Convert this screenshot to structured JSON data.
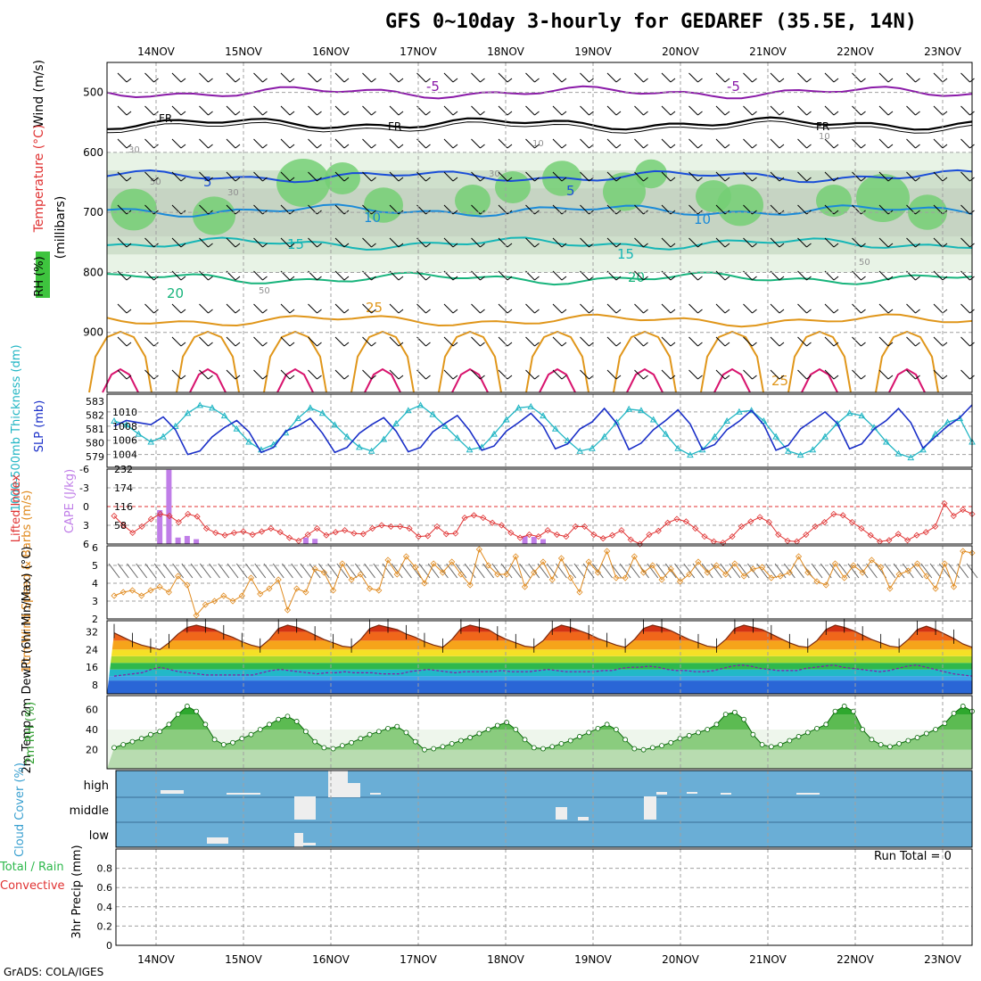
{
  "title": "GFS 0~10day 3-hourly for GEDAREF (35.5E, 14N)",
  "credit": "GrADS: COLA/IGES",
  "run_total": "Run Total = 0",
  "colors": {
    "rh_green": "#3ec43e",
    "temp_purple": "#8a1aa8",
    "slp_blue": "#1a2fc8",
    "thickness_cyan": "#22b6c4",
    "lifted_red": "#e03232",
    "cape_violet": "#c07ee8",
    "wind_orange": "#e08a1e",
    "cloud_blue": "#6aaed6",
    "rh2m_green": "#2e9e2e"
  },
  "chart_data": [
    {
      "id": "upper_air",
      "type": "heatmap",
      "y_axis_label": "(millibars)",
      "left_labels": [
        "Wind (m/s)",
        "Temperature (°C)",
        "RH (%)"
      ],
      "x_tick_labels": [
        "14NOV",
        "15NOV",
        "16NOV",
        "17NOV",
        "18NOV",
        "19NOV",
        "20NOV",
        "21NOV",
        "22NOV",
        "23NOV"
      ],
      "y_ticks": [
        500,
        600,
        700,
        800,
        900
      ],
      "ylim": [
        1000,
        450
      ],
      "temperature_contours": [
        {
          "label": "-5",
          "pressure": 500,
          "color": "#8a1aa8"
        },
        {
          "label": "FR",
          "pressure": 552,
          "color": "#000000"
        },
        {
          "label": "5",
          "pressure": 640,
          "color": "#1a4ed8"
        },
        {
          "label": "10",
          "pressure": 697,
          "color": "#1a8ad8"
        },
        {
          "label": "15",
          "pressure": 752,
          "color": "#16b6b6"
        },
        {
          "label": "20",
          "pressure": 810,
          "color": "#18b47c"
        },
        {
          "label": "25",
          "pressure": 880,
          "color": "#e0961a"
        }
      ],
      "contour_labels": [
        "-5",
        "-5",
        "FR",
        "FR",
        "FR",
        "5",
        "5",
        "10",
        "10",
        "15",
        "15",
        "20",
        "20",
        "25",
        "25",
        "30",
        "30",
        "30",
        "10",
        "10",
        "50",
        "50",
        "50"
      ]
    },
    {
      "id": "slp_thickness",
      "type": "line",
      "left_label": "1000-500mb Thickness (dm)",
      "right_label": "SLP (mb)",
      "left_ticks": [
        "583",
        "582",
        "581",
        "580",
        "579"
      ],
      "right_ticks": [
        "1010",
        "1008",
        "1006",
        "1004"
      ],
      "series": [
        {
          "name": "SLP (mb)",
          "color": "#1a2fc8",
          "values": [
            1008,
            1008.8,
            1008.5,
            1008.2,
            1009.3,
            1007.5,
            1004,
            1004.5,
            1006.5,
            1007.8,
            1008.8,
            1007.2,
            1004.3,
            1005,
            1007.3,
            1008,
            1009.1,
            1007,
            1004.3,
            1005,
            1007,
            1008.2,
            1009.2,
            1007.3,
            1004.4,
            1005,
            1007.2,
            1008.4,
            1009.5,
            1007.4,
            1004.6,
            1005.2,
            1007.3,
            1008.5,
            1009.8,
            1008,
            1004.8,
            1005.5,
            1007.6,
            1008.6,
            1010.5,
            1008.4,
            1004.7,
            1005.6,
            1007.5,
            1008.8,
            1010.3,
            1008.3,
            1004.7,
            1005.4,
            1007.5,
            1008.7,
            1010.2,
            1008.2,
            1004.6,
            1005.3,
            1007.6,
            1008.8,
            1010,
            1008.4,
            1004.8,
            1005.5,
            1007.6,
            1008.8,
            1010.5,
            1008.5,
            1004.9,
            1006.5,
            1008,
            1009.2,
            1011
          ]
        },
        {
          "name": "Thickness (dm)",
          "color": "#22b6c4",
          "values": [
            581.8,
            581.5,
            580.8,
            580.2,
            580.6,
            581.4,
            582.4,
            583,
            582.8,
            582.2,
            581.2,
            580.2,
            579.6,
            580,
            580.9,
            582,
            582.8,
            582.4,
            581.5,
            580.6,
            579.8,
            579.5,
            580.4,
            581.6,
            582.6,
            583,
            582.3,
            581.4,
            580.5,
            579.6,
            579.8,
            580.8,
            581.9,
            582.8,
            582.9,
            582.2,
            581.2,
            580.3,
            579.5,
            579.7,
            580.6,
            581.7,
            582.7,
            582.6,
            581.9,
            580.8,
            579.7,
            579.2,
            579.6,
            580.6,
            581.8,
            582.5,
            582.6,
            581.8,
            580.6,
            579.5,
            579.2,
            579.6,
            580.6,
            581.6,
            582.4,
            582.2,
            581.3,
            580.2,
            579.3,
            579,
            579.6,
            580.8,
            581.7,
            582,
            580.2
          ]
        }
      ]
    },
    {
      "id": "lifted_cape",
      "type": "bar",
      "left_label": "Lifted Index",
      "right_label": "CAPE (J/kg)",
      "left_ticks": [
        "-6",
        "-3",
        "0",
        "3",
        "6"
      ],
      "right_ticks": [
        "232",
        "174",
        "116",
        "58"
      ],
      "series": [
        {
          "name": "CAPE (J/kg)",
          "color": "#c07ee8",
          "values": [
            0,
            0,
            0,
            0,
            0,
            105,
            230,
            20,
            25,
            15,
            0,
            0,
            0,
            0,
            0,
            0,
            0,
            0,
            0,
            0,
            0,
            20,
            16,
            0,
            0,
            0,
            0,
            0,
            0,
            0,
            0,
            0,
            0,
            0,
            0,
            0,
            0,
            0,
            0,
            0,
            0,
            0,
            0,
            0,
            0,
            25,
            22,
            15,
            0,
            0,
            0,
            0,
            0,
            0,
            0,
            0,
            0,
            0,
            0,
            0,
            0,
            0,
            0,
            0,
            0,
            0,
            0,
            0,
            0,
            0,
            0,
            0,
            0,
            0,
            0,
            0,
            0,
            0,
            0,
            0,
            0,
            0,
            0,
            0,
            0,
            0,
            0,
            0,
            0,
            0,
            0,
            0,
            0,
            0,
            0
          ]
        },
        {
          "name": "Lifted Index",
          "color": "#e03232",
          "values": [
            1.5,
            3,
            4.2,
            3.2,
            2,
            1.2,
            1.5,
            2.5,
            1.2,
            1.6,
            3.5,
            4.2,
            4.6,
            4.2,
            4,
            4.5,
            4,
            3.5,
            4.1,
            5,
            5.5,
            4.5,
            3.5,
            4.6,
            4.1,
            3.8,
            4.3,
            4.4,
            3.5,
            3,
            3.2,
            3.2,
            3.5,
            4.8,
            4.7,
            3.2,
            4.4,
            4.3,
            1.8,
            1.4,
            1.8,
            2.6,
            3,
            4.2,
            5,
            4.5,
            4.8,
            3.8,
            4.5,
            4.8,
            3.2,
            3.2,
            4.5,
            5.1,
            4.6,
            3.8,
            5.3,
            6,
            4.5,
            3.9,
            2.6,
            2,
            2.4,
            3.5,
            4.8,
            5.6,
            5.8,
            4.8,
            3.2,
            2.4,
            1.7,
            2.5,
            4.5,
            5.5,
            5.6,
            4.5,
            3.2,
            2.5,
            1.2,
            1.4,
            2.5,
            3.5,
            4.6,
            5.6,
            5.4,
            4.4,
            5.4,
            4.6,
            4.1,
            3.2,
            -0.5,
            1.5,
            0.5,
            1.2
          ]
        }
      ]
    },
    {
      "id": "wind10m",
      "type": "line",
      "left_label": "10m Wind Speed & Barbs (m/s)",
      "left_ticks": [
        "6",
        "5",
        "4",
        "3",
        "2"
      ],
      "series": [
        {
          "name": "10m Wind Speed (m/s)",
          "color": "#e08a1e",
          "values": [
            3.3,
            3.5,
            3.6,
            3.3,
            3.6,
            3.8,
            3.5,
            4.4,
            3.9,
            2.2,
            2.8,
            3,
            3.3,
            3,
            3.3,
            4.3,
            3.4,
            3.7,
            4.2,
            2.5,
            3.7,
            3.5,
            4.8,
            4.6,
            3.6,
            5.1,
            4.2,
            4.5,
            3.7,
            3.6,
            5.3,
            4.5,
            5.5,
            4.9,
            4,
            5.1,
            4.6,
            5.2,
            4.5,
            3.9,
            5.9,
            5,
            4.5,
            4.5,
            5.5,
            3.8,
            4.6,
            5.2,
            4.2,
            5.4,
            4.3,
            3.5,
            5.2,
            4.6,
            5.8,
            4.3,
            4.3,
            5.5,
            4.6,
            5,
            4.2,
            4.8,
            4.1,
            4.5,
            5.2,
            4.6,
            5,
            4.5,
            5.1,
            4.4,
            4.8,
            4.9,
            4.3,
            4.4,
            4.6,
            5.5,
            4.6,
            4.1,
            3.9,
            5.1,
            4.3,
            5,
            4.6,
            5.3,
            4.9,
            3.7,
            4.5,
            4.7,
            5.1,
            4.4,
            3.7,
            5.1,
            3.8,
            5.8,
            5.7
          ]
        }
      ]
    },
    {
      "id": "temp2m",
      "type": "area",
      "left_label": "2m Temp 2m DewPt (6hr Min/Max) (°C)",
      "left_ticks": [
        "32",
        "24",
        "16",
        "8"
      ],
      "series": [
        {
          "name": "2m Temp (°C)",
          "color": "#c83c00",
          "values": [
            31.5,
            29.5,
            27.5,
            26,
            25,
            24,
            27,
            31,
            34,
            35,
            34,
            33,
            31,
            29.5,
            27.5,
            26,
            25,
            28.5,
            33.5,
            35,
            34,
            32.5,
            30.5,
            28.5,
            27,
            25.5,
            25,
            28.5,
            33.5,
            35,
            34,
            33,
            31,
            29.5,
            27.5,
            26,
            25,
            28.5,
            33.5,
            35,
            34,
            33,
            30.5,
            28.5,
            27,
            25.5,
            25,
            28,
            33,
            35,
            34,
            32.5,
            31,
            29,
            27.5,
            26,
            25,
            28.5,
            33.5,
            35,
            34,
            32.5,
            30.5,
            28.5,
            27,
            25.5,
            25,
            28.5,
            33.5,
            35,
            34,
            33,
            31,
            29,
            27,
            25.5,
            25,
            28,
            33,
            35,
            34,
            32.5,
            30.5,
            28.5,
            27,
            25.5,
            25,
            28.5,
            33,
            34.5,
            33,
            31,
            29,
            26.5,
            25
          ]
        },
        {
          "name": "2m DewPt (°C)",
          "color": "#8a1aa8",
          "values": [
            12,
            12.5,
            13,
            13.5,
            15,
            16,
            15,
            14,
            13.5,
            13,
            12.5,
            12.5,
            12.5,
            12.5,
            12.5,
            12.5,
            13.5,
            14.5,
            15,
            14.5,
            14,
            13.5,
            13,
            13.5,
            13.5,
            14,
            13.5,
            13.5,
            13.5,
            13,
            13,
            13,
            14,
            14.5,
            15,
            14.5,
            14,
            13.5,
            14,
            14,
            14,
            14,
            14.5,
            14,
            14,
            14,
            14.5,
            15,
            14.5,
            14,
            14,
            14,
            14,
            14.5,
            14.5,
            15.5,
            16,
            16,
            16.5,
            16,
            15,
            14.5,
            14.5,
            14,
            14,
            14.5,
            15.5,
            16.5,
            17,
            16.5,
            15.5,
            15,
            14.5,
            14.5,
            14.5,
            15.5,
            16,
            16.5,
            17,
            16,
            15.5,
            15,
            14.5,
            14,
            14.5,
            15.5,
            16.5,
            17,
            16,
            15,
            14,
            13,
            12.5,
            12
          ]
        }
      ]
    },
    {
      "id": "rh2m",
      "type": "area",
      "left_label": "2m RH (%)",
      "left_ticks": [
        "60",
        "40",
        "20"
      ],
      "series": [
        {
          "name": "2m RH (%)",
          "color": "#2e9e2e",
          "values": [
            22,
            25,
            28,
            31,
            35,
            38,
            45,
            55,
            63,
            58,
            45,
            30,
            25,
            27,
            31,
            35,
            40,
            45,
            50,
            53,
            48,
            38,
            28,
            22,
            21,
            24,
            27,
            31,
            35,
            38,
            41,
            43,
            37,
            28,
            20,
            21,
            23,
            26,
            29,
            32,
            36,
            40,
            44,
            47,
            40,
            30,
            22,
            21,
            23,
            26,
            29,
            33,
            37,
            41,
            45,
            40,
            30,
            21,
            20,
            22,
            24,
            27,
            31,
            34,
            37,
            40,
            45,
            55,
            57,
            50,
            35,
            25,
            23,
            25,
            29,
            33,
            37,
            41,
            45,
            58,
            63,
            58,
            40,
            30,
            25,
            23,
            26,
            29,
            32,
            36,
            40,
            46,
            56,
            63,
            58
          ]
        }
      ]
    },
    {
      "id": "cloud_cover",
      "type": "bar",
      "left_label": "Cloud Cover (%)",
      "y_tick_labels": [
        "high",
        "middle",
        "low"
      ],
      "series": [
        {
          "name": "high",
          "color": "#f0f0f0"
        },
        {
          "name": "middle",
          "color": "#f0f0f0"
        },
        {
          "name": "low",
          "color": "#f0f0f0"
        }
      ]
    },
    {
      "id": "precip",
      "type": "bar",
      "left_label": "3hr Precip (mm)",
      "legend": [
        "Total / Rain",
        "Convective"
      ],
      "y_ticks": [
        "0.8",
        "0.6",
        "0.4",
        "0.2",
        "0"
      ],
      "ylim": [
        0,
        1
      ],
      "x_tick_labels": [
        "14NOV",
        "15NOV",
        "16NOV",
        "17NOV",
        "18NOV",
        "19NOV",
        "20NOV",
        "21NOV",
        "22NOV",
        "23NOV"
      ],
      "values": []
    }
  ]
}
